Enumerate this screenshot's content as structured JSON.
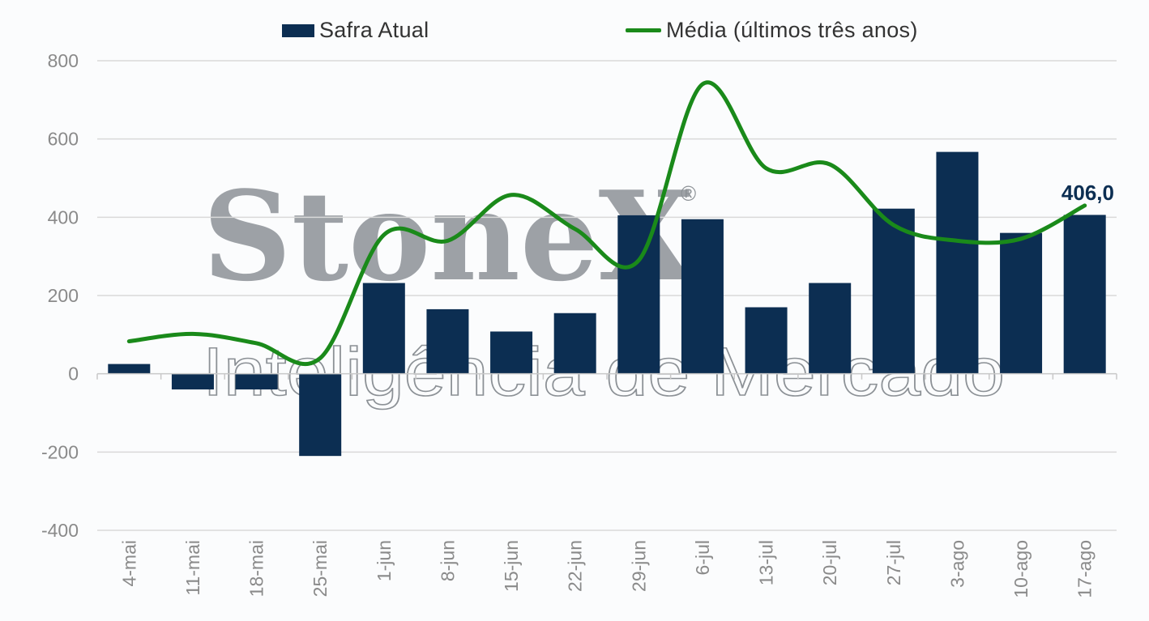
{
  "chart_data": {
    "type": "bar",
    "categories": [
      "4-mai",
      "11-mai",
      "18-mai",
      "25-mai",
      "1-jun",
      "8-jun",
      "15-jun",
      "22-jun",
      "29-jun",
      "6-jul",
      "13-jul",
      "20-jul",
      "27-jul",
      "3-ago",
      "10-ago",
      "17-ago"
    ],
    "series": [
      {
        "name": "Safra Atual",
        "type": "bar",
        "color": "#0c2e52",
        "values": [
          25,
          -40,
          -40,
          -210,
          232,
          165,
          108,
          155,
          405,
          395,
          170,
          232,
          422,
          567,
          360,
          406
        ]
      },
      {
        "name": "Média (últimos três anos)",
        "type": "line",
        "color": "#1a8a1a",
        "values": [
          83,
          102,
          78,
          40,
          355,
          340,
          457,
          370,
          290,
          740,
          525,
          535,
          380,
          340,
          345,
          430
        ]
      }
    ],
    "ylim": [
      -400,
      800
    ],
    "yticks": [
      "-400",
      "-200",
      "0",
      "200",
      "400",
      "600",
      "800"
    ],
    "annotation": "406,0",
    "grid": true,
    "legend_position": "top"
  },
  "watermark": {
    "brand": "StoneX",
    "registered": "®",
    "tagline": "Inteligência de Mercado"
  }
}
